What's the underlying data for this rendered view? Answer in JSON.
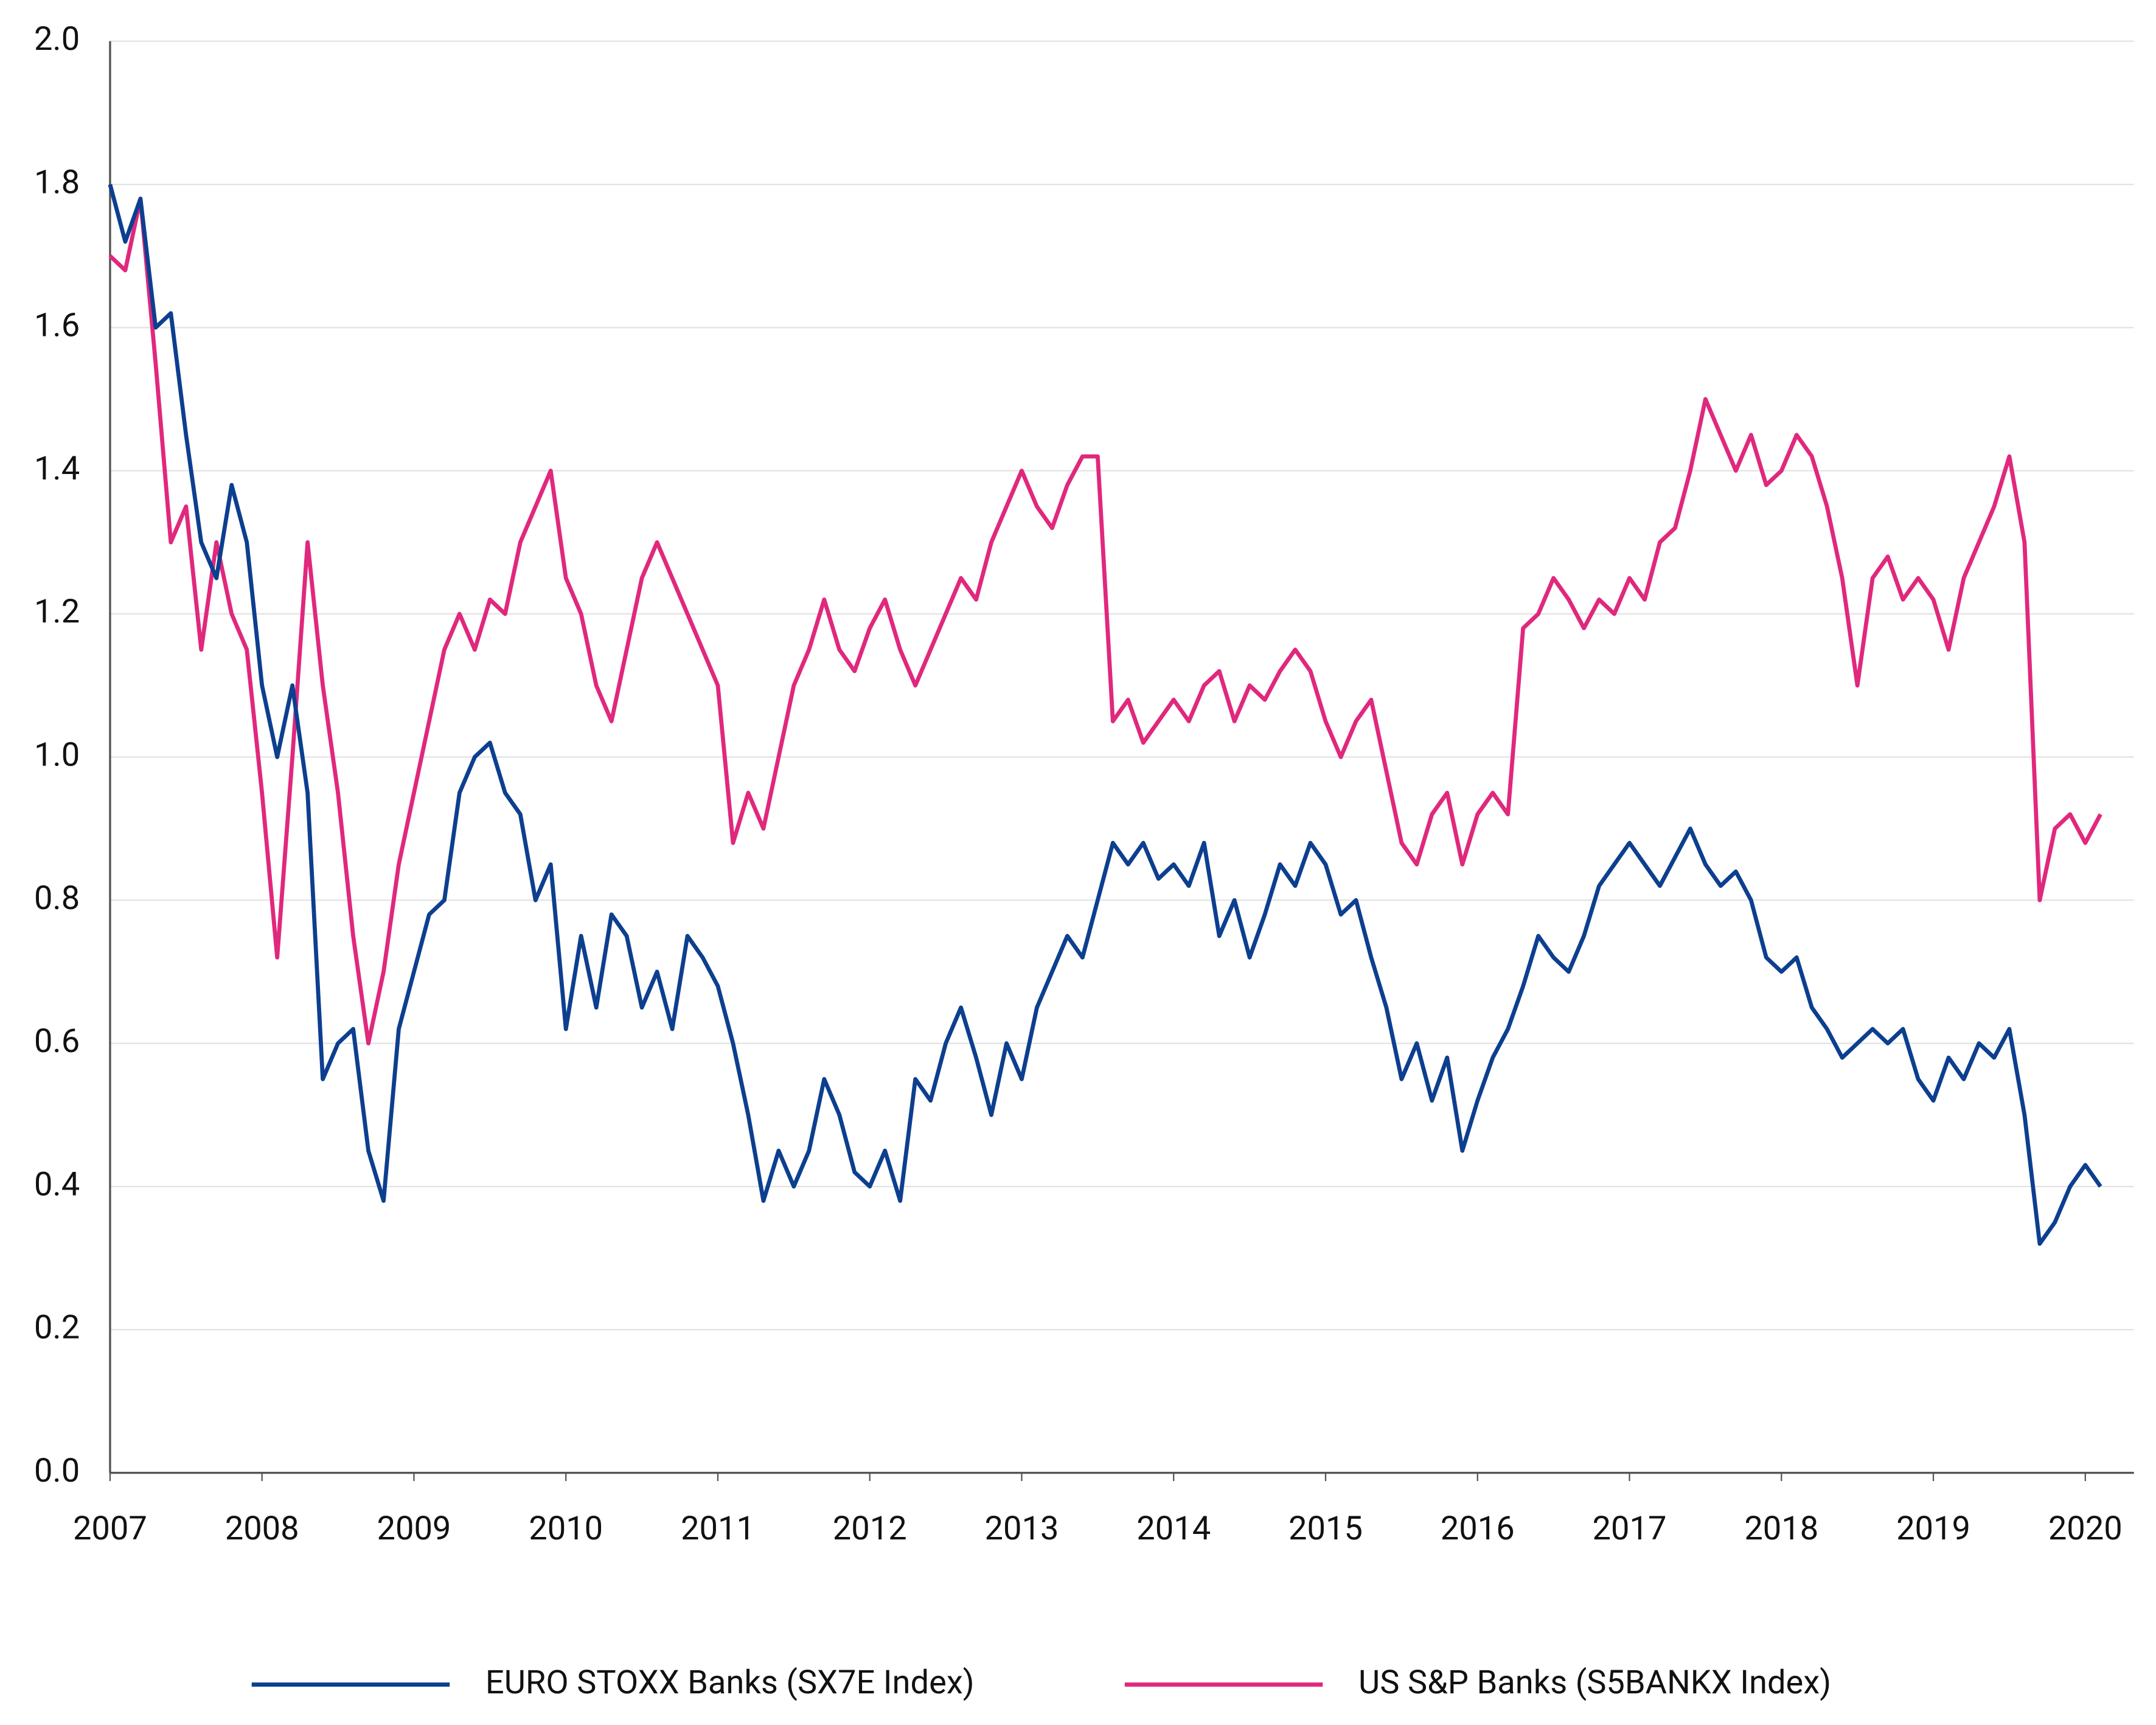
{
  "chart_data": {
    "type": "line",
    "x": [
      2007.0,
      2007.1,
      2007.2,
      2007.3,
      2007.4,
      2007.5,
      2007.6,
      2007.7,
      2007.8,
      2007.9,
      2008.0,
      2008.1,
      2008.2,
      2008.3,
      2008.4,
      2008.5,
      2008.6,
      2008.7,
      2008.8,
      2008.9,
      2009.0,
      2009.1,
      2009.2,
      2009.3,
      2009.4,
      2009.5,
      2009.6,
      2009.7,
      2009.8,
      2009.9,
      2010.0,
      2010.1,
      2010.2,
      2010.3,
      2010.4,
      2010.5,
      2010.6,
      2010.7,
      2010.8,
      2010.9,
      2011.0,
      2011.1,
      2011.2,
      2011.3,
      2011.4,
      2011.5,
      2011.6,
      2011.7,
      2011.8,
      2011.9,
      2012.0,
      2012.1,
      2012.2,
      2012.3,
      2012.4,
      2012.5,
      2012.6,
      2012.7,
      2012.8,
      2012.9,
      2013.0,
      2013.1,
      2013.2,
      2013.3,
      2013.4,
      2013.5,
      2013.6,
      2013.7,
      2013.8,
      2013.9,
      2014.0,
      2014.1,
      2014.2,
      2014.3,
      2014.4,
      2014.5,
      2014.6,
      2014.7,
      2014.8,
      2014.9,
      2015.0,
      2015.1,
      2015.2,
      2015.3,
      2015.4,
      2015.5,
      2015.6,
      2015.7,
      2015.8,
      2015.9,
      2016.0,
      2016.1,
      2016.2,
      2016.3,
      2016.4,
      2016.5,
      2016.6,
      2016.7,
      2016.8,
      2016.9,
      2017.0,
      2017.1,
      2017.2,
      2017.3,
      2017.4,
      2017.5,
      2017.6,
      2017.7,
      2017.8,
      2017.9,
      2018.0,
      2018.1,
      2018.2,
      2018.3,
      2018.4,
      2018.5,
      2018.6,
      2018.7,
      2018.8,
      2018.9,
      2019.0,
      2019.1,
      2019.2,
      2019.3,
      2019.4,
      2019.5,
      2019.6,
      2019.7,
      2019.8,
      2019.9,
      2020.0,
      2020.1
    ],
    "series": [
      {
        "name": "EURO STOXX Banks (SX7E Index)",
        "color": "#0d3f8f",
        "values": [
          1.8,
          1.72,
          1.78,
          1.6,
          1.62,
          1.45,
          1.3,
          1.25,
          1.38,
          1.3,
          1.1,
          1.0,
          1.1,
          0.95,
          0.55,
          0.6,
          0.62,
          0.45,
          0.38,
          0.62,
          0.7,
          0.78,
          0.8,
          0.95,
          1.0,
          1.02,
          0.95,
          0.92,
          0.8,
          0.85,
          0.62,
          0.75,
          0.65,
          0.78,
          0.75,
          0.65,
          0.7,
          0.62,
          0.75,
          0.72,
          0.68,
          0.6,
          0.5,
          0.38,
          0.45,
          0.4,
          0.45,
          0.55,
          0.5,
          0.42,
          0.4,
          0.45,
          0.38,
          0.55,
          0.52,
          0.6,
          0.65,
          0.58,
          0.5,
          0.6,
          0.55,
          0.65,
          0.7,
          0.75,
          0.72,
          0.8,
          0.88,
          0.85,
          0.88,
          0.83,
          0.85,
          0.82,
          0.88,
          0.75,
          0.8,
          0.72,
          0.78,
          0.85,
          0.82,
          0.88,
          0.85,
          0.78,
          0.8,
          0.72,
          0.65,
          0.55,
          0.6,
          0.52,
          0.58,
          0.45,
          0.52,
          0.58,
          0.62,
          0.68,
          0.75,
          0.72,
          0.7,
          0.75,
          0.82,
          0.85,
          0.88,
          0.85,
          0.82,
          0.86,
          0.9,
          0.85,
          0.82,
          0.84,
          0.8,
          0.72,
          0.7,
          0.72,
          0.65,
          0.62,
          0.58,
          0.6,
          0.62,
          0.6,
          0.62,
          0.55,
          0.52,
          0.58,
          0.55,
          0.6,
          0.58,
          0.62,
          0.5,
          0.32,
          0.35,
          0.4,
          0.43,
          0.4
        ]
      },
      {
        "name": "US S&P Banks (S5BANKX Index)",
        "color": "#e0287d",
        "values": [
          1.7,
          1.68,
          1.78,
          1.55,
          1.3,
          1.35,
          1.15,
          1.3,
          1.2,
          1.15,
          0.95,
          0.72,
          1.0,
          1.3,
          1.1,
          0.95,
          0.75,
          0.6,
          0.7,
          0.85,
          0.95,
          1.05,
          1.15,
          1.2,
          1.15,
          1.22,
          1.2,
          1.3,
          1.35,
          1.4,
          1.25,
          1.2,
          1.1,
          1.05,
          1.15,
          1.25,
          1.3,
          1.25,
          1.2,
          1.15,
          1.1,
          0.88,
          0.95,
          0.9,
          1.0,
          1.1,
          1.15,
          1.22,
          1.15,
          1.12,
          1.18,
          1.22,
          1.15,
          1.1,
          1.15,
          1.2,
          1.25,
          1.22,
          1.3,
          1.35,
          1.4,
          1.35,
          1.32,
          1.38,
          1.42,
          1.42,
          1.05,
          1.08,
          1.02,
          1.05,
          1.08,
          1.05,
          1.1,
          1.12,
          1.05,
          1.1,
          1.08,
          1.12,
          1.15,
          1.12,
          1.05,
          1.0,
          1.05,
          1.08,
          0.98,
          0.88,
          0.85,
          0.92,
          0.95,
          0.85,
          0.92,
          0.95,
          0.92,
          1.18,
          1.2,
          1.25,
          1.22,
          1.18,
          1.22,
          1.2,
          1.25,
          1.22,
          1.3,
          1.32,
          1.4,
          1.5,
          1.45,
          1.4,
          1.45,
          1.38,
          1.4,
          1.45,
          1.42,
          1.35,
          1.25,
          1.1,
          1.25,
          1.28,
          1.22,
          1.25,
          1.22,
          1.15,
          1.25,
          1.3,
          1.35,
          1.42,
          1.3,
          0.8,
          0.9,
          0.92,
          0.88,
          0.92
        ]
      }
    ],
    "xlim": [
      2007,
      2020.32
    ],
    "xticks": [
      2007,
      2008,
      2009,
      2010,
      2011,
      2012,
      2013,
      2014,
      2015,
      2016,
      2017,
      2018,
      2019,
      2020
    ],
    "ylim": [
      0,
      2
    ],
    "yticks": [
      {
        "value": 0,
        "label": "0.0"
      },
      0.2,
      0.4,
      0.6,
      0.8,
      {
        "value": 1,
        "label": "1.0"
      },
      1.2,
      1.4,
      1.6,
      1.8,
      {
        "value": 2,
        "label": "2.0"
      }
    ],
    "grid": true,
    "legend": "bottom"
  }
}
